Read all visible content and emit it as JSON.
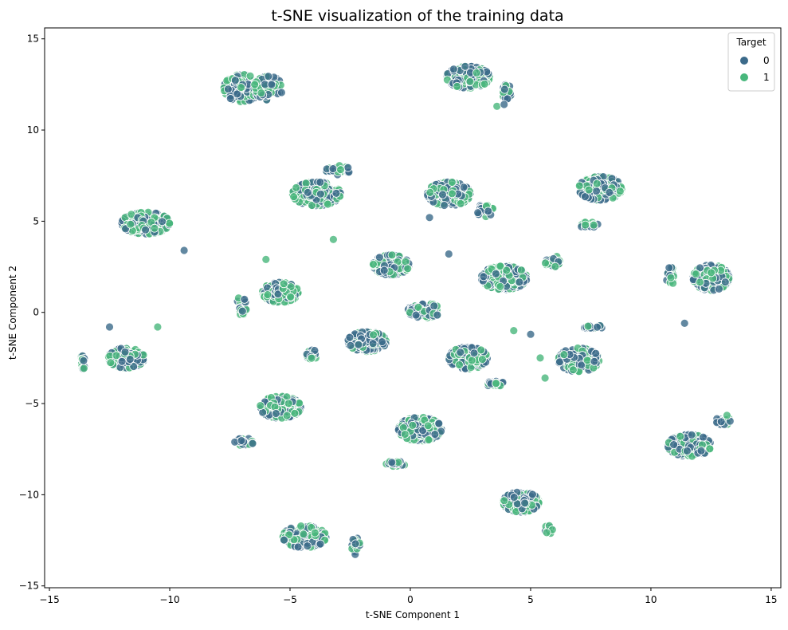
{
  "chart_data": {
    "type": "scatter",
    "title": "t-SNE visualization of the training data",
    "xlabel": "t-SNE Component 1",
    "ylabel": "t-SNE Component 2",
    "xlim": [
      -15.2,
      15.4
    ],
    "ylim": [
      -15.1,
      15.6
    ],
    "xticks": [
      -15,
      -10,
      -5,
      0,
      5,
      10,
      15
    ],
    "yticks": [
      -15,
      -10,
      -5,
      0,
      5,
      10,
      15
    ],
    "xtick_labels": [
      "−15",
      "−10",
      "−5",
      "0",
      "5",
      "10",
      "15"
    ],
    "ytick_labels": [
      "−15",
      "−10",
      "−5",
      "0",
      "5",
      "10",
      "15"
    ],
    "grid": false,
    "legend": {
      "title": "Target",
      "position": "top-right",
      "entries": [
        {
          "label": "0",
          "color": "#3b6a8a"
        },
        {
          "label": "1",
          "color": "#48b77c"
        }
      ]
    },
    "clusters": [
      {
        "center": [
          -7.0,
          12.3
        ],
        "spread": [
          0.75,
          0.75
        ],
        "count": 150
      },
      {
        "center": [
          -5.9,
          12.3
        ],
        "spread": [
          0.6,
          0.65
        ],
        "count": 90
      },
      {
        "center": [
          2.4,
          12.9
        ],
        "spread": [
          0.9,
          0.6
        ],
        "count": 200
      },
      {
        "center": [
          4.0,
          12.1
        ],
        "spread": [
          0.2,
          0.4
        ],
        "count": 20
      },
      {
        "center": [
          -3.9,
          6.5
        ],
        "spread": [
          1.0,
          0.65
        ],
        "count": 230
      },
      {
        "center": [
          -3.0,
          7.8
        ],
        "spread": [
          0.5,
          0.25
        ],
        "count": 25
      },
      {
        "center": [
          1.6,
          6.5
        ],
        "spread": [
          0.9,
          0.65
        ],
        "count": 200
      },
      {
        "center": [
          3.1,
          5.6
        ],
        "spread": [
          0.35,
          0.35
        ],
        "count": 25
      },
      {
        "center": [
          7.9,
          6.8
        ],
        "spread": [
          0.9,
          0.65
        ],
        "count": 210
      },
      {
        "center": [
          7.4,
          4.8
        ],
        "spread": [
          0.4,
          0.15
        ],
        "count": 20
      },
      {
        "center": [
          -11.0,
          4.9
        ],
        "spread": [
          1.0,
          0.6
        ],
        "count": 220
      },
      {
        "center": [
          -0.8,
          2.6
        ],
        "spread": [
          0.75,
          0.55
        ],
        "count": 150
      },
      {
        "center": [
          3.9,
          1.9
        ],
        "spread": [
          0.95,
          0.65
        ],
        "count": 220
      },
      {
        "center": [
          5.9,
          2.8
        ],
        "spread": [
          0.3,
          0.35
        ],
        "count": 20
      },
      {
        "center": [
          -5.4,
          1.1
        ],
        "spread": [
          0.75,
          0.55
        ],
        "count": 170
      },
      {
        "center": [
          -7.0,
          0.4
        ],
        "spread": [
          0.2,
          0.55
        ],
        "count": 20
      },
      {
        "center": [
          12.5,
          1.9
        ],
        "spread": [
          0.75,
          0.7
        ],
        "count": 180
      },
      {
        "center": [
          10.8,
          2.0
        ],
        "spread": [
          0.2,
          0.5
        ],
        "count": 20
      },
      {
        "center": [
          0.6,
          0.1
        ],
        "spread": [
          0.7,
          0.4
        ],
        "count": 80
      },
      {
        "center": [
          -1.8,
          -1.6
        ],
        "spread": [
          0.8,
          0.55
        ],
        "count": 170
      },
      {
        "center": [
          -4.1,
          -2.3
        ],
        "spread": [
          0.2,
          0.4
        ],
        "count": 20
      },
      {
        "center": [
          2.4,
          -2.5
        ],
        "spread": [
          0.8,
          0.6
        ],
        "count": 190
      },
      {
        "center": [
          3.5,
          -3.9
        ],
        "spread": [
          0.4,
          0.15
        ],
        "count": 20
      },
      {
        "center": [
          7.0,
          -2.6
        ],
        "spread": [
          0.85,
          0.65
        ],
        "count": 220
      },
      {
        "center": [
          7.6,
          -0.8
        ],
        "spread": [
          0.4,
          0.1
        ],
        "count": 15
      },
      {
        "center": [
          -11.8,
          -2.5
        ],
        "spread": [
          0.75,
          0.55
        ],
        "count": 170
      },
      {
        "center": [
          -13.6,
          -2.7
        ],
        "spread": [
          0.1,
          0.4
        ],
        "count": 15
      },
      {
        "center": [
          -5.4,
          -5.2
        ],
        "spread": [
          0.85,
          0.6
        ],
        "count": 200
      },
      {
        "center": [
          -6.9,
          -7.1
        ],
        "spread": [
          0.4,
          0.2
        ],
        "count": 20
      },
      {
        "center": [
          0.4,
          -6.4
        ],
        "spread": [
          0.9,
          0.65
        ],
        "count": 230
      },
      {
        "center": [
          -0.6,
          -8.3
        ],
        "spread": [
          0.4,
          0.15
        ],
        "count": 20
      },
      {
        "center": [
          11.6,
          -7.3
        ],
        "spread": [
          0.9,
          0.6
        ],
        "count": 210
      },
      {
        "center": [
          13.0,
          -5.9
        ],
        "spread": [
          0.3,
          0.3
        ],
        "count": 20
      },
      {
        "center": [
          4.6,
          -10.4
        ],
        "spread": [
          0.75,
          0.55
        ],
        "count": 170
      },
      {
        "center": [
          5.8,
          -11.9
        ],
        "spread": [
          0.2,
          0.3
        ],
        "count": 15
      },
      {
        "center": [
          -4.4,
          -12.3
        ],
        "spread": [
          0.9,
          0.6
        ],
        "count": 200
      },
      {
        "center": [
          -2.3,
          -12.8
        ],
        "spread": [
          0.2,
          0.5
        ],
        "count": 20
      }
    ],
    "outliers": [
      [
        1.6,
        3.2
      ],
      [
        4.3,
        -1.0
      ],
      [
        5.0,
        -1.2
      ],
      [
        5.4,
        -2.5
      ],
      [
        11.4,
        -0.6
      ],
      [
        -3.2,
        4.0
      ],
      [
        -12.5,
        -0.8
      ],
      [
        -10.5,
        -0.8
      ],
      [
        -9.4,
        3.4
      ],
      [
        -6.0,
        2.9
      ],
      [
        0.8,
        5.2
      ],
      [
        3.6,
        11.3
      ],
      [
        3.9,
        11.4
      ],
      [
        5.6,
        -3.6
      ]
    ]
  }
}
